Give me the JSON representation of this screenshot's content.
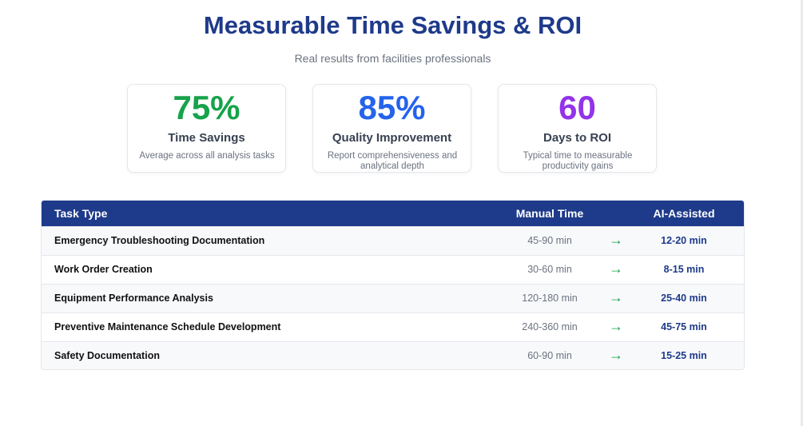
{
  "header": {
    "title": "Measurable Time Savings & ROI",
    "subtitle": "Real results from facilities professionals"
  },
  "stats": [
    {
      "value": "75%",
      "label": "Time Savings",
      "description": "Average across all analysis tasks",
      "color": "#16a34a"
    },
    {
      "value": "85%",
      "label": "Quality Improvement",
      "description": "Report comprehensiveness and analytical depth",
      "color": "#2563eb"
    },
    {
      "value": "60",
      "label": "Days to ROI",
      "description": "Typical time to measurable productivity gains",
      "color": "#9333ea"
    }
  ],
  "table": {
    "headers": {
      "task": "Task Type",
      "manual": "Manual Time",
      "ai": "AI-Assisted"
    },
    "rows": [
      {
        "task": "Emergency Troubleshooting Documentation",
        "manual": "45-90 min",
        "arrow": "→",
        "ai": "12-20 min"
      },
      {
        "task": "Work Order Creation",
        "manual": "30-60 min",
        "arrow": "→",
        "ai": "8-15 min"
      },
      {
        "task": "Equipment Performance Analysis",
        "manual": "120-180 min",
        "arrow": "→",
        "ai": "25-40 min"
      },
      {
        "task": "Preventive Maintenance Schedule Development",
        "manual": "240-360 min",
        "arrow": "→",
        "ai": "45-75 min"
      },
      {
        "task": "Safety Documentation",
        "manual": "60-90 min",
        "arrow": "→",
        "ai": "15-25 min"
      }
    ]
  },
  "colors": {
    "primary": "#1e3a8a",
    "arrow": "#16a34a"
  }
}
